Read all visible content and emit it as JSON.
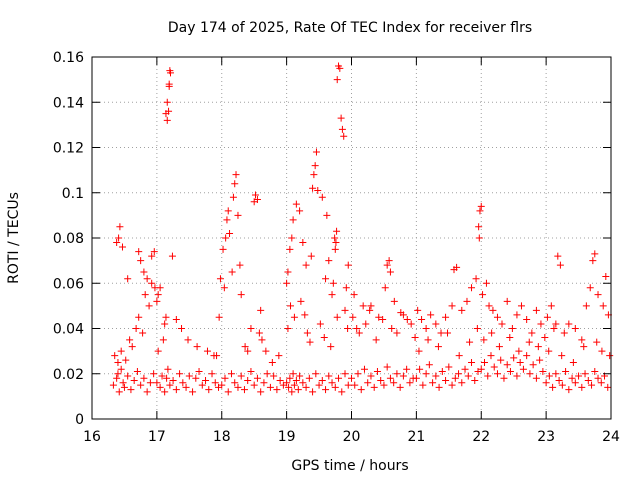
{
  "chart_data": {
    "type": "scatter",
    "title": "Day 174 of 2025, Rate Of TEC Index for receiver flrs",
    "xlabel": "GPS time / hours",
    "ylabel": "ROTI / TECUs",
    "xlim": [
      16,
      24
    ],
    "ylim": [
      0,
      0.16
    ],
    "x_ticks": [
      16,
      17,
      18,
      19,
      20,
      21,
      22,
      23,
      24
    ],
    "x_tick_labels": [
      "16",
      "17",
      "18",
      "19",
      "20",
      "21",
      "22",
      "23",
      "24"
    ],
    "y_ticks": [
      0,
      0.02,
      0.04,
      0.06,
      0.08,
      0.1,
      0.12,
      0.14,
      0.16
    ],
    "y_tick_labels": [
      "0",
      "0.02",
      "0.04",
      "0.06",
      "0.08",
      "0.1",
      "0.12",
      "0.14",
      "0.16"
    ],
    "grid": true,
    "marker": "+",
    "colors": {
      "marker": "#ff0000",
      "grid": "#a0a0a0",
      "axis": "#000000"
    },
    "series": [
      {
        "name": "flrs",
        "x": [
          16.33,
          16.38,
          16.4,
          16.42,
          16.45,
          16.48,
          16.5,
          16.55,
          16.6,
          16.65,
          16.7,
          16.75,
          16.8,
          16.85,
          16.9,
          16.95,
          16.35,
          16.4,
          16.45,
          16.52,
          16.58,
          16.62,
          16.68,
          16.72,
          16.78,
          16.82,
          16.88,
          16.92,
          16.97,
          16.38,
          16.41,
          16.43,
          16.47,
          16.55,
          16.72,
          16.75,
          16.8,
          16.85,
          16.92,
          16.96,
          17.0,
          17.05,
          17.08,
          17.12,
          17.15,
          17.17,
          17.2,
          17.25,
          17.3,
          17.35,
          17.4,
          17.45,
          17.5,
          17.55,
          17.6,
          17.65,
          17.7,
          17.75,
          17.8,
          17.85,
          17.9,
          17.95,
          17.02,
          17.1,
          17.14,
          17.16,
          17.18,
          17.19,
          17.21,
          17.24,
          17.3,
          17.38,
          17.48,
          17.62,
          17.78,
          17.88,
          17.0,
          17.02,
          17.05,
          17.12,
          17.14,
          17.16,
          17.19,
          17.2,
          18.0,
          18.05,
          18.1,
          18.15,
          18.2,
          18.25,
          18.3,
          18.35,
          18.4,
          18.45,
          18.5,
          18.55,
          18.6,
          18.65,
          18.7,
          18.75,
          18.8,
          18.85,
          18.9,
          18.95,
          17.98,
          18.02,
          18.06,
          18.08,
          18.1,
          18.12,
          18.18,
          18.2,
          18.22,
          18.25,
          18.28,
          18.3,
          18.45,
          18.5,
          18.52,
          18.55,
          18.58,
          18.62,
          17.92,
          17.96,
          18.04,
          18.16,
          18.36,
          18.4,
          18.6,
          18.68,
          18.78,
          18.88,
          19.0,
          19.03,
          19.05,
          19.08,
          19.1,
          19.12,
          19.15,
          19.18,
          19.2,
          19.25,
          19.3,
          19.35,
          19.4,
          19.45,
          19.5,
          19.55,
          19.6,
          19.65,
          19.7,
          19.75,
          19.8,
          19.85,
          19.9,
          19.95,
          19.0,
          19.02,
          19.05,
          19.08,
          19.1,
          19.15,
          19.2,
          19.25,
          19.3,
          19.38,
          19.4,
          19.42,
          19.44,
          19.46,
          19.48,
          19.55,
          19.6,
          19.62,
          19.65,
          19.7,
          19.72,
          19.75,
          19.77,
          19.78,
          19.8,
          19.82,
          19.84,
          19.86,
          19.88,
          19.9,
          19.92,
          19.95,
          19.02,
          19.06,
          19.12,
          19.22,
          19.28,
          19.32,
          19.36,
          19.52,
          19.58,
          19.68,
          19.74,
          19.76,
          19.78,
          19.94,
          20.0,
          20.05,
          20.1,
          20.15,
          20.2,
          20.25,
          20.3,
          20.35,
          20.4,
          20.45,
          20.5,
          20.55,
          20.6,
          20.65,
          20.7,
          20.75,
          20.8,
          20.85,
          20.9,
          20.95,
          20.02,
          20.08,
          20.12,
          20.22,
          20.3,
          20.38,
          20.48,
          20.55,
          20.58,
          20.6,
          20.62,
          20.7,
          20.8,
          20.92,
          20.98,
          20.04,
          20.18,
          20.28,
          20.42,
          20.52,
          20.66,
          20.76,
          20.86,
          21.0,
          21.05,
          21.1,
          21.15,
          21.2,
          21.25,
          21.3,
          21.35,
          21.4,
          21.45,
          21.5,
          21.55,
          21.6,
          21.65,
          21.7,
          21.75,
          21.8,
          21.85,
          21.9,
          21.95,
          21.02,
          21.08,
          21.15,
          21.22,
          21.3,
          21.38,
          21.45,
          21.55,
          21.58,
          21.62,
          21.7,
          21.78,
          21.85,
          21.92,
          21.96,
          21.97,
          21.98,
          22.0,
          21.04,
          21.18,
          21.34,
          21.48,
          21.66,
          21.82,
          21.94,
          22.0,
          22.05,
          22.1,
          22.15,
          22.2,
          22.25,
          22.3,
          22.35,
          22.4,
          22.45,
          22.5,
          22.55,
          22.6,
          22.65,
          22.7,
          22.75,
          22.8,
          22.85,
          22.9,
          22.95,
          22.02,
          22.08,
          22.12,
          22.18,
          22.25,
          22.32,
          22.4,
          22.48,
          22.55,
          22.62,
          22.7,
          22.78,
          22.85,
          22.92,
          22.98,
          22.04,
          22.16,
          22.28,
          22.44,
          22.58,
          22.74,
          22.88,
          23.0,
          23.05,
          23.1,
          23.15,
          23.2,
          23.25,
          23.3,
          23.35,
          23.4,
          23.45,
          23.5,
          23.55,
          23.6,
          23.65,
          23.7,
          23.75,
          23.8,
          23.85,
          23.9,
          23.95,
          23.02,
          23.08,
          23.12,
          23.15,
          23.18,
          23.22,
          23.28,
          23.35,
          23.45,
          23.55,
          23.62,
          23.68,
          23.72,
          23.75,
          23.8,
          23.88,
          23.92,
          23.96,
          23.04,
          23.24,
          23.42,
          23.58,
          23.78,
          23.86,
          23.98
        ],
        "y": [
          0.015,
          0.018,
          0.02,
          0.012,
          0.022,
          0.016,
          0.014,
          0.019,
          0.013,
          0.017,
          0.021,
          0.015,
          0.018,
          0.012,
          0.016,
          0.02,
          0.028,
          0.025,
          0.03,
          0.026,
          0.035,
          0.032,
          0.04,
          0.045,
          0.038,
          0.055,
          0.05,
          0.06,
          0.058,
          0.078,
          0.08,
          0.085,
          0.076,
          0.062,
          0.074,
          0.07,
          0.065,
          0.062,
          0.072,
          0.074,
          0.016,
          0.014,
          0.019,
          0.012,
          0.018,
          0.022,
          0.015,
          0.017,
          0.013,
          0.02,
          0.016,
          0.014,
          0.019,
          0.012,
          0.018,
          0.021,
          0.015,
          0.017,
          0.013,
          0.02,
          0.016,
          0.014,
          0.03,
          0.035,
          0.045,
          0.132,
          0.136,
          0.147,
          0.153,
          0.072,
          0.044,
          0.04,
          0.035,
          0.032,
          0.03,
          0.028,
          0.052,
          0.055,
          0.058,
          0.042,
          0.135,
          0.14,
          0.148,
          0.154,
          0.015,
          0.018,
          0.012,
          0.02,
          0.016,
          0.014,
          0.019,
          0.013,
          0.017,
          0.021,
          0.015,
          0.018,
          0.012,
          0.016,
          0.02,
          0.014,
          0.019,
          0.013,
          0.017,
          0.015,
          0.062,
          0.075,
          0.08,
          0.088,
          0.092,
          0.082,
          0.098,
          0.104,
          0.108,
          0.09,
          0.068,
          0.055,
          0.04,
          0.096,
          0.099,
          0.097,
          0.038,
          0.035,
          0.028,
          0.045,
          0.058,
          0.065,
          0.032,
          0.03,
          0.048,
          0.03,
          0.025,
          0.028,
          0.016,
          0.014,
          0.018,
          0.012,
          0.02,
          0.015,
          0.017,
          0.013,
          0.019,
          0.016,
          0.014,
          0.018,
          0.012,
          0.02,
          0.015,
          0.017,
          0.013,
          0.019,
          0.016,
          0.014,
          0.018,
          0.012,
          0.02,
          0.015,
          0.06,
          0.065,
          0.075,
          0.08,
          0.088,
          0.095,
          0.092,
          0.078,
          0.068,
          0.072,
          0.102,
          0.108,
          0.112,
          0.118,
          0.101,
          0.098,
          0.062,
          0.09,
          0.07,
          0.055,
          0.06,
          0.075,
          0.083,
          0.15,
          0.156,
          0.155,
          0.133,
          0.128,
          0.125,
          0.048,
          0.058,
          0.068,
          0.04,
          0.05,
          0.045,
          0.052,
          0.046,
          0.038,
          0.034,
          0.042,
          0.036,
          0.032,
          0.08,
          0.078,
          0.045,
          0.04,
          0.018,
          0.015,
          0.02,
          0.013,
          0.022,
          0.016,
          0.019,
          0.014,
          0.021,
          0.017,
          0.015,
          0.023,
          0.018,
          0.016,
          0.02,
          0.014,
          0.019,
          0.022,
          0.016,
          0.018,
          0.045,
          0.04,
          0.038,
          0.042,
          0.05,
          0.035,
          0.044,
          0.068,
          0.07,
          0.065,
          0.04,
          0.038,
          0.046,
          0.042,
          0.036,
          0.055,
          0.05,
          0.048,
          0.045,
          0.058,
          0.052,
          0.047,
          0.044,
          0.018,
          0.022,
          0.015,
          0.02,
          0.024,
          0.016,
          0.019,
          0.014,
          0.021,
          0.017,
          0.023,
          0.015,
          0.018,
          0.02,
          0.016,
          0.022,
          0.019,
          0.025,
          0.017,
          0.021,
          0.048,
          0.044,
          0.04,
          0.046,
          0.042,
          0.038,
          0.045,
          0.05,
          0.066,
          0.067,
          0.048,
          0.052,
          0.058,
          0.062,
          0.085,
          0.08,
          0.092,
          0.094,
          0.03,
          0.035,
          0.032,
          0.038,
          0.028,
          0.034,
          0.04,
          0.022,
          0.025,
          0.019,
          0.028,
          0.023,
          0.02,
          0.026,
          0.018,
          0.024,
          0.021,
          0.027,
          0.019,
          0.025,
          0.022,
          0.028,
          0.02,
          0.024,
          0.018,
          0.026,
          0.021,
          0.055,
          0.06,
          0.05,
          0.048,
          0.045,
          0.042,
          0.052,
          0.04,
          0.046,
          0.05,
          0.044,
          0.038,
          0.048,
          0.042,
          0.036,
          0.035,
          0.038,
          0.032,
          0.036,
          0.03,
          0.034,
          0.032,
          0.016,
          0.019,
          0.014,
          0.02,
          0.017,
          0.015,
          0.021,
          0.013,
          0.018,
          0.016,
          0.019,
          0.014,
          0.02,
          0.017,
          0.015,
          0.021,
          0.018,
          0.016,
          0.019,
          0.014,
          0.045,
          0.05,
          0.04,
          0.042,
          0.072,
          0.068,
          0.038,
          0.042,
          0.04,
          0.035,
          0.05,
          0.058,
          0.07,
          0.073,
          0.055,
          0.05,
          0.063,
          0.046,
          0.03,
          0.028,
          0.025,
          0.032,
          0.034,
          0.03,
          0.028
        ]
      }
    ]
  }
}
